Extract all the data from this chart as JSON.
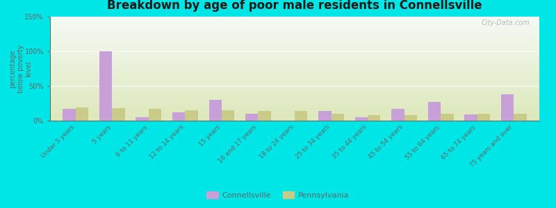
{
  "title": "Breakdown by age of poor male residents in Connellsville",
  "categories": [
    "Under 5 years",
    "5 years",
    "6 to 11 years",
    "12 to 14 years",
    "15 years",
    "16 and 17 years",
    "18 to 24 years",
    "25 to 34 years",
    "35 to 44 years",
    "45 to 54 years",
    "55 to 64 years",
    "65 to 74 years",
    "75 years and over"
  ],
  "connellsville": [
    17,
    100,
    5,
    12,
    30,
    10,
    0,
    14,
    5,
    17,
    27,
    9,
    38
  ],
  "pennsylvania": [
    19,
    18,
    17,
    15,
    15,
    14,
    14,
    10,
    8,
    8,
    10,
    10,
    10
  ],
  "connellsville_color": "#c8a0d8",
  "pennsylvania_color": "#c8cc88",
  "bar_width": 0.35,
  "ylim": [
    0,
    150
  ],
  "yticks": [
    0,
    50,
    100,
    150
  ],
  "ytick_labels": [
    "0%",
    "50%",
    "100%",
    "150%"
  ],
  "ylabel": "percentage\nbelow poverty\nlevel",
  "background_color": "#00e5e5",
  "plot_bg_top": "#f5faf5",
  "plot_bg_bottom": "#dde8bb",
  "title_color": "#1a1a1a",
  "axis_color": "#666666",
  "watermark": "City-Data.com",
  "legend_connellsville": "Connellsville",
  "legend_pennsylvania": "Pennsylvania"
}
